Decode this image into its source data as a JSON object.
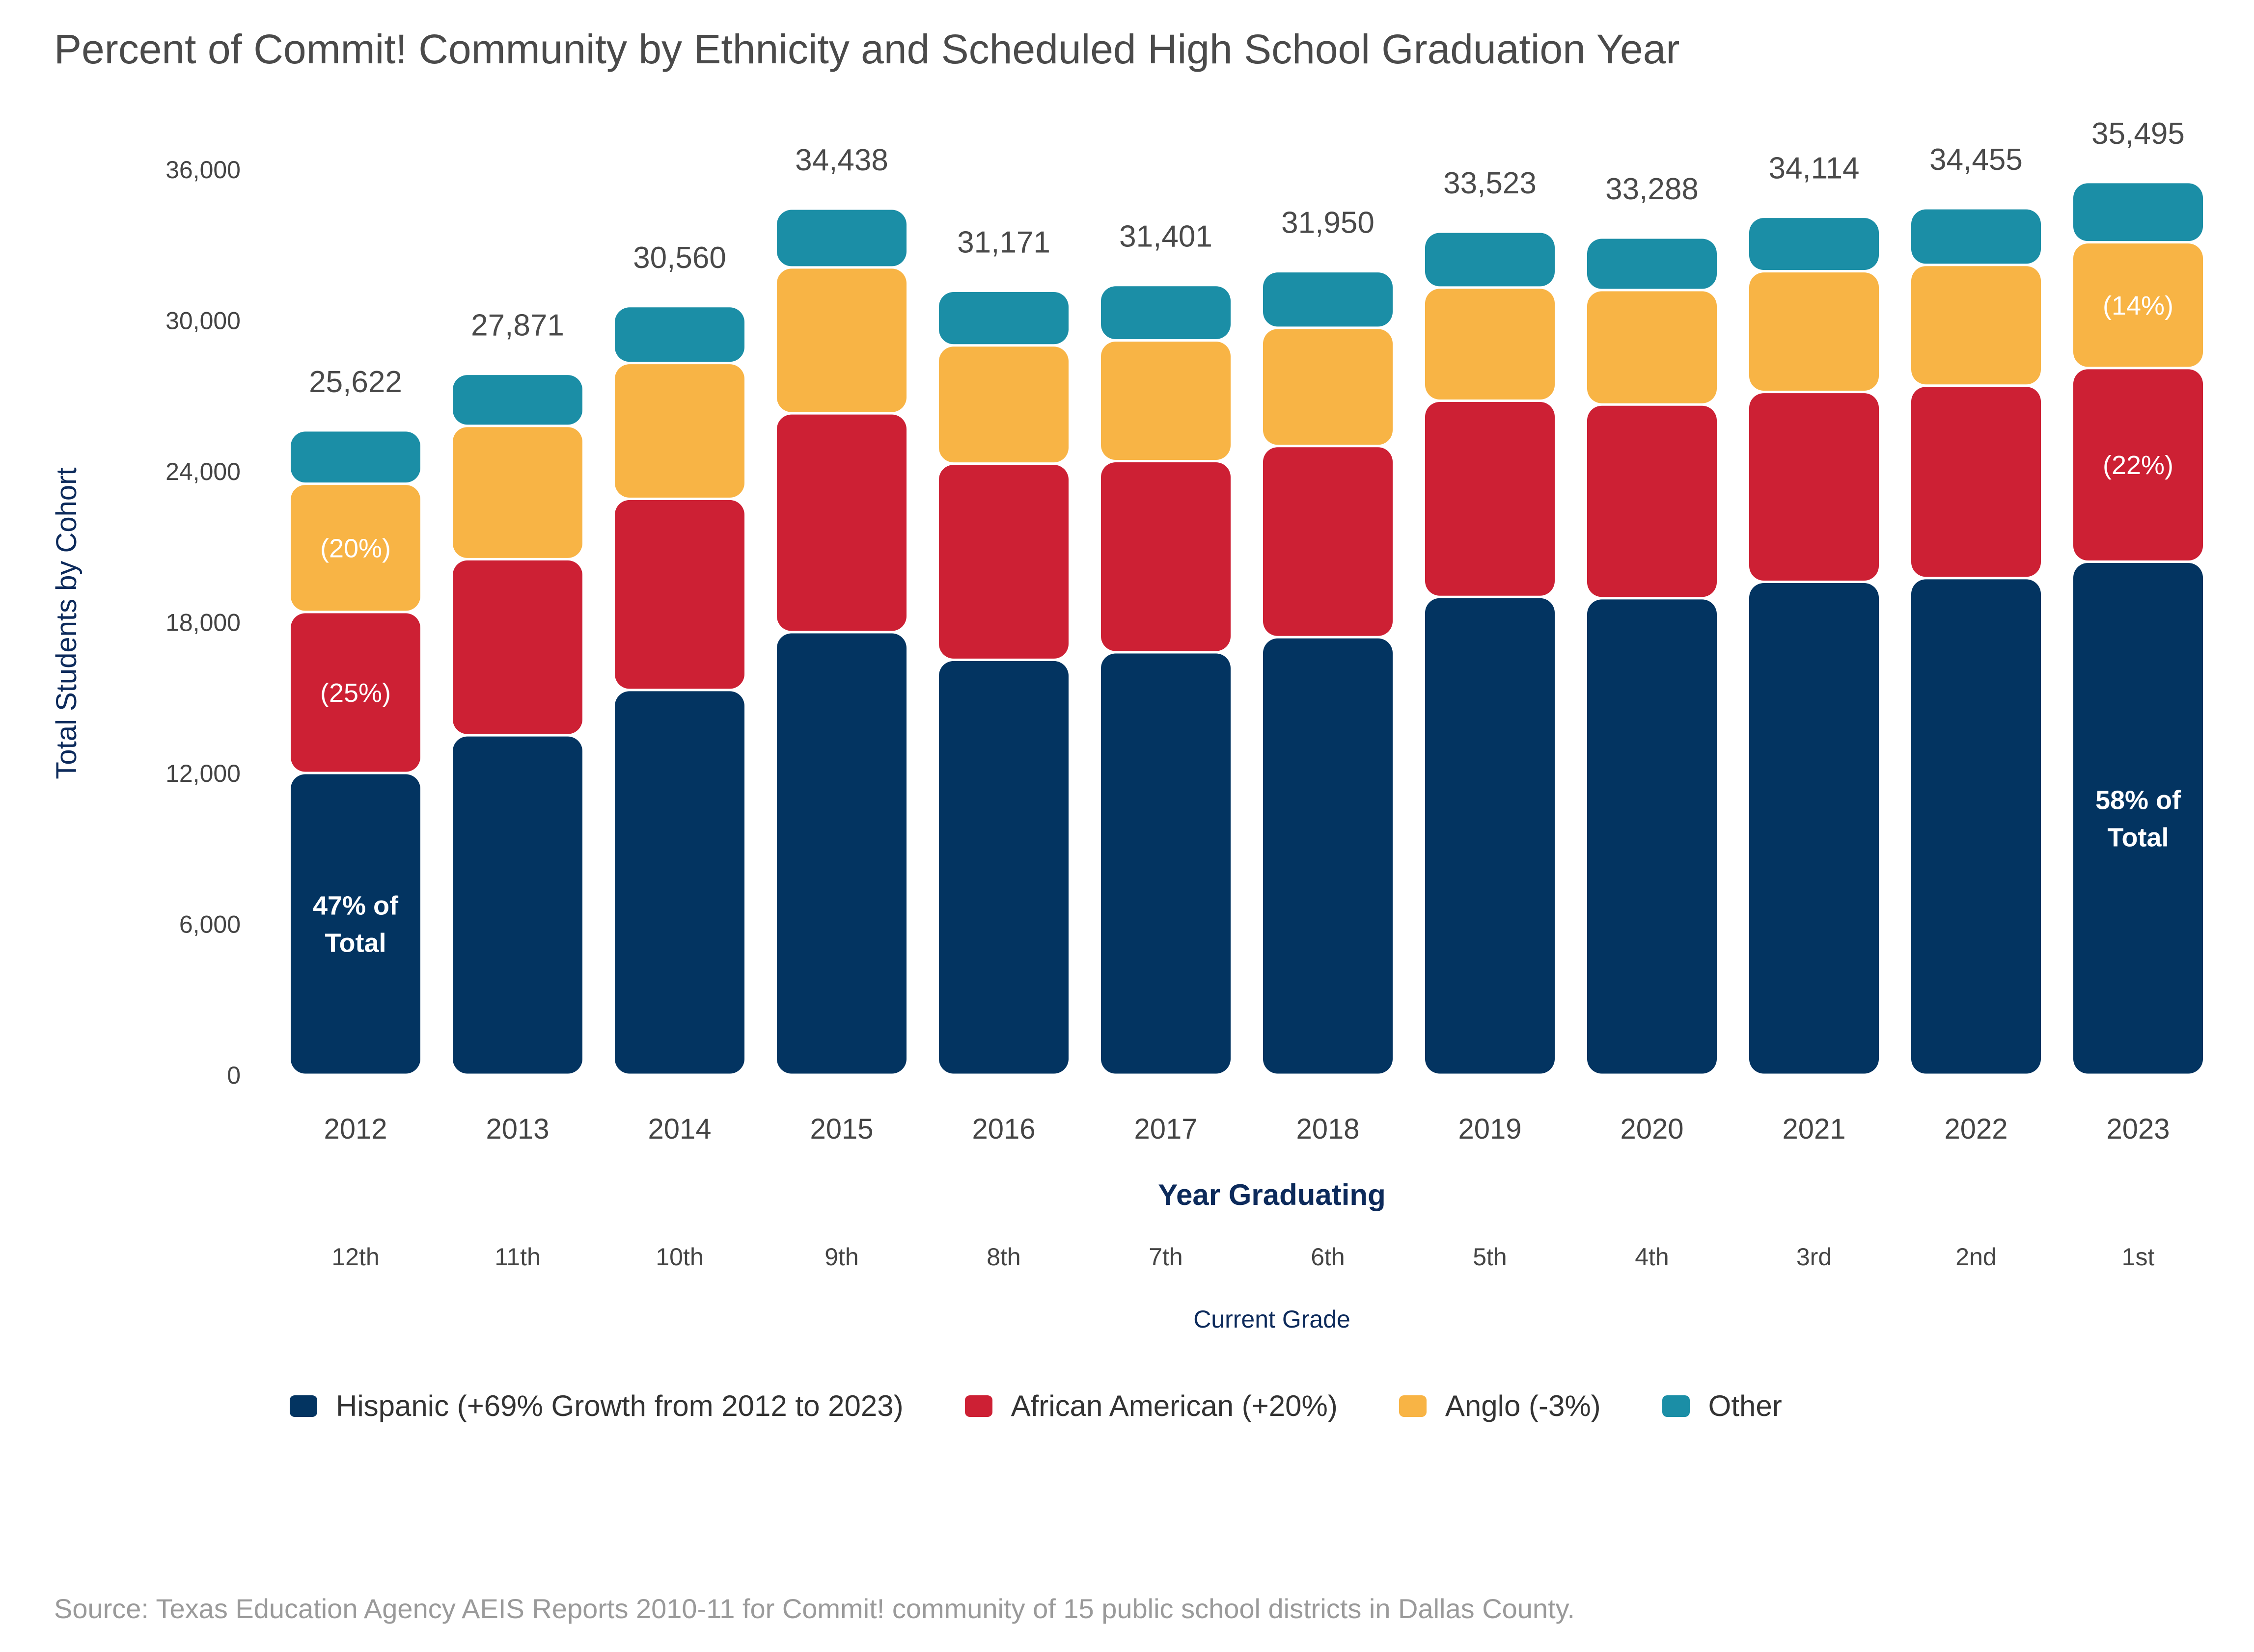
{
  "title": "Percent of Commit! Community by Ethnicity and Scheduled High School Graduation Year",
  "source": "Source: Texas Education Agency AEIS Reports 2010-11 for Commit! community of 15 public school districts in Dallas County.",
  "colors": {
    "hispanic": "#033461",
    "african_american": "#cd2034",
    "anglo": "#f8b445",
    "other": "#1b8ea6",
    "title_text": "#4a4a4a",
    "axis_title": "#0c2a5b",
    "tick_text": "#444444"
  },
  "legend": [
    {
      "label": "Hispanic (+69% Growth from 2012 to 2023)",
      "color": "#033461"
    },
    {
      "label": "African American (+20%)",
      "color": "#cd2034"
    },
    {
      "label": "Anglo (-3%)",
      "color": "#f8b445"
    },
    {
      "label": "Other",
      "color": "#1b8ea6"
    }
  ],
  "chart_data": {
    "type": "bar",
    "stacked": true,
    "ylabel": "Total Students by Cohort",
    "xlabel": "Year Graduating",
    "secondary_xlabel": "Current Grade",
    "ylim": [
      0,
      36000
    ],
    "yticks": [
      "0",
      "6,000",
      "12,000",
      "18,000",
      "24,000",
      "30,000",
      "36,000"
    ],
    "ytick_values": [
      0,
      6000,
      12000,
      18000,
      24000,
      30000,
      36000
    ],
    "categories": [
      "2012",
      "2013",
      "2014",
      "2015",
      "2016",
      "2017",
      "2018",
      "2019",
      "2020",
      "2021",
      "2022",
      "2023"
    ],
    "grades": [
      "12th",
      "11th",
      "10th",
      "9th",
      "8th",
      "7th",
      "6th",
      "5th",
      "4th",
      "3rd",
      "2nd",
      "1st"
    ],
    "totals": [
      25622,
      27871,
      30560,
      34438,
      31171,
      31401,
      31950,
      33523,
      33288,
      34114,
      34455,
      35495
    ],
    "total_labels": [
      "25,622",
      "27,871",
      "30,560",
      "34,438",
      "31,171",
      "31,401",
      "31,950",
      "33,523",
      "33,288",
      "34,114",
      "34,455",
      "35,495"
    ],
    "series": [
      {
        "name": "Hispanic (+69% Growth from 2012 to 2023)",
        "key": "hispanic",
        "values": [
          12000,
          13500,
          15300,
          17600,
          16500,
          16800,
          17400,
          19000,
          18950,
          19600,
          19750,
          20400
        ]
      },
      {
        "name": "African American (+20%)",
        "key": "african_american",
        "values": [
          6400,
          7000,
          7600,
          8700,
          7800,
          7600,
          7600,
          7800,
          7700,
          7550,
          7650,
          7700
        ]
      },
      {
        "name": "Anglo (-3%)",
        "key": "anglo",
        "values": [
          5100,
          5300,
          5400,
          5800,
          4700,
          4800,
          4700,
          4500,
          4550,
          4800,
          4800,
          5000
        ]
      },
      {
        "name": "Other",
        "key": "other",
        "values": [
          2122,
          2071,
          2260,
          2338,
          2171,
          2201,
          2250,
          2223,
          2088,
          2164,
          2255,
          2395
        ]
      }
    ],
    "annotations": [
      {
        "category": "2012",
        "series": "hispanic",
        "text": "47% of Total"
      },
      {
        "category": "2012",
        "series": "african_american",
        "text": "(25%)"
      },
      {
        "category": "2012",
        "series": "anglo",
        "text": "(20%)"
      },
      {
        "category": "2023",
        "series": "hispanic",
        "text": "58% of Total"
      },
      {
        "category": "2023",
        "series": "african_american",
        "text": "(22%)"
      },
      {
        "category": "2023",
        "series": "anglo",
        "text": "(14%)"
      }
    ],
    "grid": false,
    "legend_position": "bottom"
  }
}
